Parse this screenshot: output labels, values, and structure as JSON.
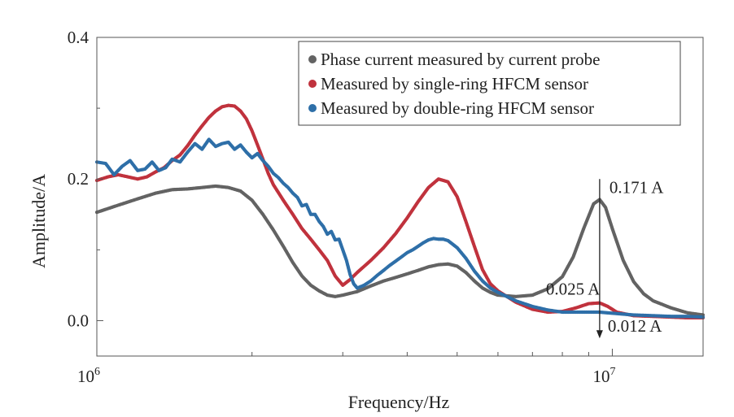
{
  "chart_data": {
    "type": "scatter",
    "xlabel": "Frequency/Hz",
    "ylabel": "Amplitude/A",
    "x_scale": "log",
    "xlim": [
      1000000,
      15000000
    ],
    "ylim": [
      -0.05,
      0.4
    ],
    "x_ticks": [
      {
        "value": 1000000,
        "base": "10",
        "exp": "6"
      },
      {
        "value": 10000000,
        "base": "10",
        "exp": "7"
      }
    ],
    "y_ticks": [
      {
        "value": 0.0,
        "label": "0.0"
      },
      {
        "value": 0.2,
        "label": "0.2"
      },
      {
        "value": 0.4,
        "label": "0.4"
      }
    ],
    "legend_position": "top-right",
    "series": [
      {
        "name": "Phase current measured by current probe",
        "color": "#636363",
        "points": [
          [
            1000000,
            0.153
          ],
          [
            1100000,
            0.163
          ],
          [
            1200000,
            0.172
          ],
          [
            1300000,
            0.18
          ],
          [
            1400000,
            0.185
          ],
          [
            1500000,
            0.186
          ],
          [
            1600000,
            0.188
          ],
          [
            1700000,
            0.19
          ],
          [
            1800000,
            0.188
          ],
          [
            1900000,
            0.183
          ],
          [
            2000000,
            0.17
          ],
          [
            2100000,
            0.15
          ],
          [
            2200000,
            0.128
          ],
          [
            2300000,
            0.105
          ],
          [
            2400000,
            0.082
          ],
          [
            2500000,
            0.063
          ],
          [
            2600000,
            0.05
          ],
          [
            2700000,
            0.042
          ],
          [
            2800000,
            0.036
          ],
          [
            2900000,
            0.034
          ],
          [
            3000000,
            0.036
          ],
          [
            3200000,
            0.041
          ],
          [
            3400000,
            0.049
          ],
          [
            3600000,
            0.056
          ],
          [
            3800000,
            0.061
          ],
          [
            4000000,
            0.066
          ],
          [
            4200000,
            0.071
          ],
          [
            4400000,
            0.076
          ],
          [
            4600000,
            0.079
          ],
          [
            4800000,
            0.08
          ],
          [
            5000000,
            0.077
          ],
          [
            5200000,
            0.068
          ],
          [
            5400000,
            0.056
          ],
          [
            5600000,
            0.046
          ],
          [
            5800000,
            0.04
          ],
          [
            6000000,
            0.036
          ],
          [
            6500000,
            0.034
          ],
          [
            7000000,
            0.036
          ],
          [
            7500000,
            0.045
          ],
          [
            8000000,
            0.062
          ],
          [
            8400000,
            0.09
          ],
          [
            8800000,
            0.13
          ],
          [
            9200000,
            0.165
          ],
          [
            9450000,
            0.171
          ],
          [
            9700000,
            0.16
          ],
          [
            10000000,
            0.13
          ],
          [
            10500000,
            0.085
          ],
          [
            11000000,
            0.055
          ],
          [
            11500000,
            0.038
          ],
          [
            12000000,
            0.028
          ],
          [
            13000000,
            0.018
          ],
          [
            14000000,
            0.011
          ],
          [
            15000000,
            0.008
          ]
        ]
      },
      {
        "name": "Measured by single-ring HFCM sensor",
        "color": "#c0323d",
        "points": [
          [
            1000000,
            0.198
          ],
          [
            1050000,
            0.203
          ],
          [
            1100000,
            0.206
          ],
          [
            1150000,
            0.203
          ],
          [
            1200000,
            0.2
          ],
          [
            1250000,
            0.203
          ],
          [
            1300000,
            0.21
          ],
          [
            1350000,
            0.216
          ],
          [
            1400000,
            0.226
          ],
          [
            1450000,
            0.234
          ],
          [
            1500000,
            0.247
          ],
          [
            1550000,
            0.262
          ],
          [
            1600000,
            0.275
          ],
          [
            1650000,
            0.287
          ],
          [
            1700000,
            0.296
          ],
          [
            1750000,
            0.302
          ],
          [
            1800000,
            0.304
          ],
          [
            1850000,
            0.303
          ],
          [
            1900000,
            0.296
          ],
          [
            1950000,
            0.285
          ],
          [
            2000000,
            0.268
          ],
          [
            2050000,
            0.248
          ],
          [
            2100000,
            0.228
          ],
          [
            2150000,
            0.208
          ],
          [
            2200000,
            0.192
          ],
          [
            2300000,
            0.17
          ],
          [
            2400000,
            0.15
          ],
          [
            2500000,
            0.13
          ],
          [
            2600000,
            0.115
          ],
          [
            2700000,
            0.1
          ],
          [
            2800000,
            0.085
          ],
          [
            2900000,
            0.063
          ],
          [
            3000000,
            0.05
          ],
          [
            3100000,
            0.058
          ],
          [
            3200000,
            0.068
          ],
          [
            3400000,
            0.085
          ],
          [
            3600000,
            0.103
          ],
          [
            3800000,
            0.123
          ],
          [
            4000000,
            0.145
          ],
          [
            4200000,
            0.168
          ],
          [
            4400000,
            0.188
          ],
          [
            4600000,
            0.2
          ],
          [
            4800000,
            0.196
          ],
          [
            5000000,
            0.175
          ],
          [
            5200000,
            0.14
          ],
          [
            5400000,
            0.105
          ],
          [
            5600000,
            0.072
          ],
          [
            5800000,
            0.052
          ],
          [
            6000000,
            0.042
          ],
          [
            6500000,
            0.026
          ],
          [
            7000000,
            0.016
          ],
          [
            7500000,
            0.012
          ],
          [
            8000000,
            0.013
          ],
          [
            8500000,
            0.018
          ],
          [
            9000000,
            0.024
          ],
          [
            9450000,
            0.025
          ],
          [
            9800000,
            0.02
          ],
          [
            10200000,
            0.012
          ],
          [
            11000000,
            0.007
          ],
          [
            12000000,
            0.006
          ],
          [
            13000000,
            0.005
          ],
          [
            14000000,
            0.004
          ],
          [
            15000000,
            0.004
          ]
        ]
      },
      {
        "name": "Measured by double-ring HFCM sensor",
        "color": "#2e6fa8",
        "points": [
          [
            1000000,
            0.224
          ],
          [
            1040000,
            0.222
          ],
          [
            1080000,
            0.206
          ],
          [
            1120000,
            0.218
          ],
          [
            1160000,
            0.226
          ],
          [
            1200000,
            0.212
          ],
          [
            1240000,
            0.214
          ],
          [
            1280000,
            0.224
          ],
          [
            1320000,
            0.212
          ],
          [
            1360000,
            0.216
          ],
          [
            1400000,
            0.228
          ],
          [
            1450000,
            0.224
          ],
          [
            1500000,
            0.238
          ],
          [
            1550000,
            0.25
          ],
          [
            1600000,
            0.242
          ],
          [
            1650000,
            0.256
          ],
          [
            1700000,
            0.246
          ],
          [
            1750000,
            0.25
          ],
          [
            1800000,
            0.252
          ],
          [
            1850000,
            0.242
          ],
          [
            1900000,
            0.248
          ],
          [
            1950000,
            0.238
          ],
          [
            2000000,
            0.23
          ],
          [
            2050000,
            0.236
          ],
          [
            2100000,
            0.226
          ],
          [
            2150000,
            0.218
          ],
          [
            2200000,
            0.208
          ],
          [
            2250000,
            0.202
          ],
          [
            2300000,
            0.194
          ],
          [
            2350000,
            0.188
          ],
          [
            2400000,
            0.18
          ],
          [
            2450000,
            0.174
          ],
          [
            2500000,
            0.162
          ],
          [
            2550000,
            0.164
          ],
          [
            2600000,
            0.15
          ],
          [
            2650000,
            0.15
          ],
          [
            2700000,
            0.14
          ],
          [
            2750000,
            0.133
          ],
          [
            2800000,
            0.122
          ],
          [
            2850000,
            0.126
          ],
          [
            2900000,
            0.114
          ],
          [
            2950000,
            0.115
          ],
          [
            3000000,
            0.1
          ],
          [
            3050000,
            0.085
          ],
          [
            3100000,
            0.065
          ],
          [
            3150000,
            0.052
          ],
          [
            3200000,
            0.046
          ],
          [
            3300000,
            0.05
          ],
          [
            3400000,
            0.056
          ],
          [
            3500000,
            0.064
          ],
          [
            3600000,
            0.071
          ],
          [
            3700000,
            0.078
          ],
          [
            3800000,
            0.084
          ],
          [
            3900000,
            0.09
          ],
          [
            4000000,
            0.096
          ],
          [
            4100000,
            0.1
          ],
          [
            4200000,
            0.105
          ],
          [
            4300000,
            0.11
          ],
          [
            4400000,
            0.114
          ],
          [
            4500000,
            0.116
          ],
          [
            4600000,
            0.115
          ],
          [
            4700000,
            0.115
          ],
          [
            4800000,
            0.113
          ],
          [
            4900000,
            0.108
          ],
          [
            5000000,
            0.103
          ],
          [
            5200000,
            0.088
          ],
          [
            5400000,
            0.07
          ],
          [
            5600000,
            0.056
          ],
          [
            5800000,
            0.046
          ],
          [
            6000000,
            0.04
          ],
          [
            6500000,
            0.028
          ],
          [
            7000000,
            0.02
          ],
          [
            7500000,
            0.015
          ],
          [
            8000000,
            0.012
          ],
          [
            8500000,
            0.012
          ],
          [
            9000000,
            0.012
          ],
          [
            9450000,
            0.012
          ],
          [
            9800000,
            0.011
          ],
          [
            10200000,
            0.01
          ],
          [
            11000000,
            0.008
          ],
          [
            12000000,
            0.007
          ],
          [
            13000000,
            0.006
          ],
          [
            14000000,
            0.006
          ],
          [
            15000000,
            0.005
          ]
        ]
      }
    ],
    "annotations": [
      {
        "text": "0.171 A",
        "x": 9450000,
        "y": 0.171
      },
      {
        "text": "0.025 A",
        "x": 9450000,
        "y": 0.025
      },
      {
        "text": "0.012 A",
        "x": 9450000,
        "y": 0.012
      }
    ],
    "arrow": {
      "x": 9450000,
      "from": 0.2,
      "to": -0.025
    }
  }
}
